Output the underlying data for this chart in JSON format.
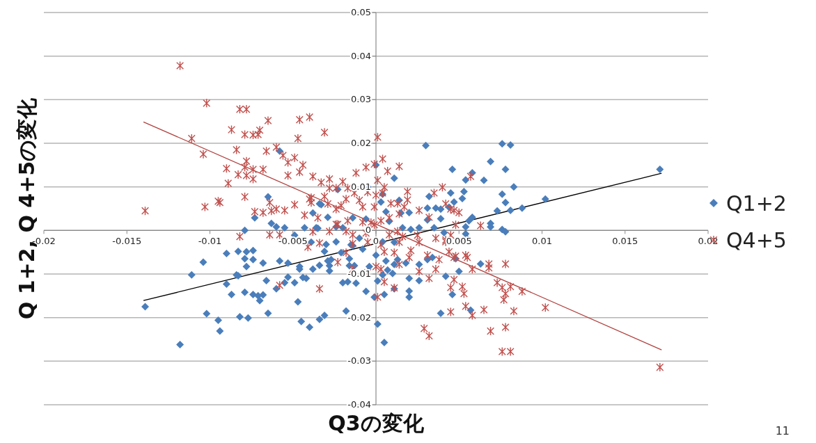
{
  "chart_data": {
    "type": "scatter",
    "xlabel": "Q3の変化",
    "ylabel": "Q 1+2, Q 4+5の変化",
    "xlim": [
      -0.02,
      0.02
    ],
    "xticks": [
      -0.02,
      -0.015,
      -0.01,
      -0.005,
      0,
      0.005,
      0.01,
      0.015,
      0.02
    ],
    "ylim": [
      -0.04,
      0.05
    ],
    "yticks": [
      -0.04,
      -0.03,
      -0.02,
      -0.01,
      0,
      0.01,
      0.02,
      0.03,
      0.04,
      0.05
    ],
    "grid": "y",
    "legend": "right",
    "annotations": [
      "11"
    ],
    "series": [
      {
        "name": "Q1+2",
        "color": "#4a7ebb",
        "marker": "diamond",
        "x": [
          -0.0139,
          -0.0118,
          -0.0111,
          -0.0104,
          -0.0102,
          -0.0095,
          -0.0094,
          -0.009,
          -0.009,
          -0.0087,
          -0.0084,
          -0.0083,
          -0.0083,
          -0.0082,
          -0.0079,
          -0.0079,
          -0.0079,
          -0.0078,
          -0.0078,
          -0.0077,
          -0.0074,
          -0.0074,
          -0.0074,
          -0.0071,
          -0.007,
          -0.0068,
          -0.0068,
          -0.0066,
          -0.0065,
          -0.0063,
          -0.006,
          -0.006,
          -0.0058,
          -0.0055,
          -0.0055,
          -0.0053,
          -0.0053,
          -0.0049,
          -0.0049,
          -0.0047,
          -0.0046,
          -0.0046,
          -0.0045,
          -0.0044,
          -0.0043,
          -0.0042,
          -0.004,
          -0.0039,
          -0.0038,
          -0.0035,
          -0.0034,
          -0.0034,
          -0.0031,
          -0.0031,
          -0.003,
          -0.0029,
          -0.0028,
          -0.0027,
          -0.0028,
          -0.0024,
          -0.0058,
          -0.0065,
          -0.0073,
          -0.0038,
          -0.0034,
          -0.0029,
          -0.0023,
          -0.0024,
          0,
          0.0011,
          0.003,
          0.0046,
          -0.0005,
          0.0004,
          0.0003,
          -0.0033,
          0.0032,
          0.0045,
          0.0047,
          0.0014,
          0.0006,
          0.0015,
          0.002,
          0.0031,
          0.0036,
          0.0039,
          0.0044,
          0.0031,
          0.0039,
          0.0026,
          0.0041,
          -0.002,
          -0.0014,
          -0.0006,
          0.0008,
          0.0016,
          0.0021,
          0.0035,
          -0.001,
          -0.0014,
          0.0004,
          0.0011,
          -0.0036,
          -0.0015,
          -0.0008,
          -0.0021,
          -0.0016,
          -0.0013,
          -0.0016,
          -0.0004,
          0,
          0.0006,
          0.0007,
          0.0004,
          0.001,
          0.0013,
          0.0011,
          0.0018,
          0.002,
          0.0026,
          0.0026,
          0.0031,
          0.0034,
          0.0042,
          -0.002,
          -0.0017,
          -0.0012,
          0.0001,
          -0.0006,
          -0.0001,
          0.0005,
          0.0011,
          0.002,
          0.002,
          -0.0018,
          0.0001,
          0.0005,
          0.0039,
          0.0076,
          0.0081,
          0.0069,
          0.0078,
          0.0058,
          0.0054,
          0.0065,
          0.0083,
          0.0053,
          0.0076,
          0.0052,
          0.0078,
          0.0102,
          0.0171,
          0.0088,
          0.0081,
          0.0073,
          0.0058,
          0.0056,
          0.0054,
          0.0069,
          0.0069,
          0.0076,
          0.0078,
          0.0054,
          0.0055,
          0.0063,
          0.0048,
          0.005,
          0.0046,
          0.0057
        ],
        "values": [
          -0.0175,
          -0.0262,
          -0.0102,
          -0.0073,
          -0.0191,
          -0.0206,
          -0.0231,
          -0.0053,
          -0.0123,
          -0.0147,
          -0.0102,
          -0.0104,
          -0.0048,
          -0.0198,
          -0.0142,
          0,
          -0.0065,
          -0.0083,
          -0.0049,
          -0.0201,
          -0.0046,
          -0.0147,
          -0.0067,
          -0.015,
          -0.0161,
          -0.0075,
          -0.0148,
          -0.0115,
          -0.019,
          0.0016,
          0.0008,
          -0.0134,
          -0.007,
          0.0006,
          -0.012,
          -0.0075,
          -0.0107,
          -0.0011,
          -0.012,
          -0.0164,
          -0.0083,
          -0.0089,
          -0.0209,
          -0.0108,
          0.0006,
          -0.011,
          -0.0222,
          -0.0027,
          -0.0089,
          0.0005,
          -0.008,
          -0.0204,
          -0.0048,
          -0.0195,
          -0.0032,
          -0.007,
          -0.0081,
          -0.0067,
          -0.0093,
          -0.0026,
          0.0182,
          0.0077,
          0.0029,
          0.004,
          0.0061,
          0.003,
          0.0094,
          0.0008,
          0.015,
          0.012,
          0.0195,
          0.014,
          0.01,
          0.0083,
          0.0065,
          0.0059,
          0.0078,
          0.0086,
          0.0065,
          0.0069,
          0.0043,
          0.004,
          0.0041,
          0.0051,
          0.0051,
          0.0049,
          0.0053,
          0.0024,
          0.0027,
          0.0006,
          -0.0005,
          0.0006,
          0.0029,
          0.0026,
          0.0021,
          0.0006,
          0.0002,
          0.0006,
          -0.0018,
          -0.0035,
          -0.0026,
          -0.0027,
          0.0006,
          -0.0033,
          -0.0043,
          -0.0051,
          -0.0065,
          -0.0081,
          -0.0081,
          -0.0083,
          -0.0057,
          -0.007,
          -0.0091,
          -0.0102,
          -0.0099,
          -0.0067,
          -0.0078,
          -0.0075,
          -0.011,
          -0.0078,
          -0.0115,
          -0.0067,
          -0.0062,
          -0.0105,
          -0.012,
          -0.0118,
          -0.0121,
          -0.0116,
          -0.014,
          -0.0153,
          -0.0147,
          -0.0134,
          -0.0139,
          -0.0153,
          -0.0185,
          -0.0215,
          -0.0257,
          -0.019,
          0.0199,
          0.0196,
          0.0158,
          0.014,
          0.0132,
          0.0116,
          0.0115,
          0.01,
          0.0089,
          0.0083,
          0.0073,
          0.0064,
          0.0072,
          0.014,
          0.0051,
          0.0046,
          0.0045,
          0.003,
          0.0022,
          0.0008,
          0.0016,
          0.0008,
          0.0002,
          -0.0003,
          -0.0008,
          -0.0019,
          -0.0077,
          -0.0065,
          -0.0094,
          -0.0147,
          -0.0183
        ]
      },
      {
        "name": "Q4+5",
        "color": "#c0504d",
        "marker": "cross",
        "x": [
          -0.0118,
          -0.0102,
          -0.0082,
          -0.0078,
          -0.0065,
          -0.0046,
          -0.004,
          -0.0087,
          -0.0079,
          -0.0074,
          -0.0071,
          -0.007,
          -0.0047,
          -0.0031,
          -0.0111,
          -0.0104,
          -0.0084,
          -0.0066,
          -0.006,
          -0.0056,
          -0.0053,
          -0.0049,
          -0.0044,
          -0.0078,
          -0.009,
          -0.0089,
          -0.0083,
          -0.0079,
          -0.0078,
          -0.0074,
          -0.0074,
          -0.0068,
          -0.0053,
          -0.0046,
          -0.0038,
          -0.0033,
          -0.0028,
          -0.0028,
          -0.0024,
          -0.0139,
          -0.0103,
          -0.0095,
          -0.0094,
          -0.0079,
          -0.0064,
          -0.0073,
          -0.0068,
          -0.0063,
          -0.006,
          -0.0055,
          -0.0049,
          -0.0043,
          -0.0039,
          -0.0039,
          -0.0035,
          -0.0031,
          -0.0029,
          -0.0024,
          -0.0024,
          -0.0028,
          -0.0038,
          -0.0064,
          -0.0058,
          -0.0082,
          -0.0041,
          -0.0034,
          -0.0023,
          -0.0058,
          -0.0034,
          0.0001,
          0.0004,
          -0.0001,
          -0.0006,
          0.0007,
          0.0014,
          -0.0012,
          -0.002,
          0.0001,
          0.0005,
          0.0004,
          -0.0005,
          -0.0013,
          -0.0017,
          -0.0018,
          -0.001,
          0,
          -0.0001,
          -0.0008,
          -0.0021,
          -0.004,
          0.0019,
          0.0009,
          0.0013,
          0.0017,
          0.0019,
          0.0026,
          0.0035,
          0.004,
          0.0042,
          0.0047,
          0.0032,
          0.0014,
          0.0008,
          0.0003,
          -0.0003,
          -0.0008,
          -0.0017,
          -0.0023,
          -0.0018,
          -0.0014,
          -0.0006,
          -0.0001,
          0.0008,
          0.0013,
          0.0016,
          0.0025,
          0.0036,
          0.0042,
          -0.0014,
          -0.0005,
          0.0003,
          -0.0018,
          -0.0014,
          -0.0005,
          0,
          0.0003,
          0.0005,
          0.0011,
          0.0001,
          0.0005,
          0.0011,
          0.0014,
          0.002,
          0.0026,
          0.0031,
          0.0032,
          0.0036,
          0.0044,
          0.0045,
          0.0047,
          0.0045,
          0.0029,
          0.0032,
          0.0021,
          0.0014,
          0.0042,
          0.0026,
          0.0057,
          0.0045,
          0.005,
          0.0048,
          0.0063,
          0.0045,
          0.0047,
          0.0055,
          0.0068,
          0.0078,
          0.0038,
          0.0048,
          0.0054,
          0.0058,
          0.0068,
          0.0052,
          0.0053,
          0.0073,
          0.0076,
          0.0081,
          0.0078,
          0.0077,
          0.0088,
          0.0102,
          0.0054,
          0.0058,
          0.0065,
          0.0083,
          0.0069,
          0.0078,
          0.0076,
          0.0081,
          0.0171
        ],
        "values": [
          0.0378,
          0.0292,
          0.0278,
          0.0278,
          0.0252,
          0.0254,
          0.026,
          0.0231,
          0.022,
          0.0219,
          0.022,
          0.023,
          0.0211,
          0.0225,
          0.0211,
          0.0175,
          0.0185,
          0.0182,
          0.0191,
          0.0172,
          0.0156,
          0.0167,
          0.015,
          0.0159,
          0.0142,
          0.0108,
          0.0128,
          0.0145,
          0.0126,
          0.014,
          0.0118,
          0.014,
          0.0126,
          0.0134,
          0.0124,
          0.011,
          0.0118,
          0.0097,
          0.0097,
          0.0045,
          0.0054,
          0.0067,
          0.0064,
          0.0077,
          0.0064,
          0.0043,
          0.0041,
          0.0045,
          0.0049,
          0.0046,
          0.0059,
          0.0035,
          0.0075,
          0.0064,
          0.0029,
          0.0078,
          0.0061,
          0.0049,
          0.0014,
          -0.0002,
          -0.0003,
          -0.001,
          -0.001,
          -0.0014,
          -0.0038,
          -0.0029,
          -0.0073,
          -0.0126,
          -0.0134,
          0.0214,
          0.0164,
          0.0152,
          0.0145,
          0.0136,
          0.0147,
          0.0132,
          0.0112,
          0.0115,
          0.0099,
          0.0086,
          0.0088,
          0.0086,
          0.0097,
          0.0072,
          0.0069,
          0.0081,
          0.0054,
          0.0054,
          0.0057,
          0.0072,
          0.0089,
          0.0062,
          0.0062,
          0.0054,
          0.007,
          0.0046,
          0.0086,
          0.0099,
          0.0061,
          0.0046,
          0.003,
          0.0038,
          0.0029,
          0.0022,
          0.0018,
          0.0019,
          0.0022,
          0.0014,
          -0.0002,
          -0.001,
          -0.0006,
          0.0013,
          -0.001,
          -0.0002,
          -0.0014,
          -0.0011,
          -0.0018,
          -0.0022,
          -0.003,
          -0.0027,
          -0.0033,
          -0.0051,
          -0.0089,
          -0.0097,
          -0.0083,
          -0.0089,
          -0.0118,
          -0.0132,
          -0.0153,
          -0.0049,
          -0.0051,
          -0.0078,
          -0.0062,
          -0.0094,
          -0.0057,
          -0.011,
          -0.0089,
          -0.0049,
          -0.0131,
          -0.0113,
          -0.0187,
          -0.0225,
          -0.0242,
          -0.0046,
          -0.0027,
          -0.0026,
          -0.0027,
          0.0124,
          0.0049,
          0.0041,
          0.0013,
          0.0011,
          -0.0011,
          -0.0062,
          -0.0062,
          -0.0077,
          -0.0077,
          -0.0067,
          -0.0059,
          -0.0057,
          -0.0089,
          -0.0086,
          -0.0129,
          -0.0145,
          -0.012,
          -0.0131,
          -0.0129,
          -0.0145,
          -0.0159,
          -0.014,
          -0.0177,
          -0.0174,
          -0.0195,
          -0.0182,
          -0.0185,
          -0.0231,
          -0.0222,
          -0.0278,
          -0.0278,
          -0.0314
        ]
      },
      {
        "type": "line",
        "color": "#000000",
        "marker": "none",
        "x": [
          -0.014,
          0.0172
        ],
        "values": [
          -0.0161,
          0.0131
        ]
      },
      {
        "type": "line",
        "color": "#b0413e",
        "marker": "none",
        "x": [
          -0.014,
          0.0172
        ],
        "values": [
          0.0249,
          -0.0274
        ]
      }
    ]
  }
}
